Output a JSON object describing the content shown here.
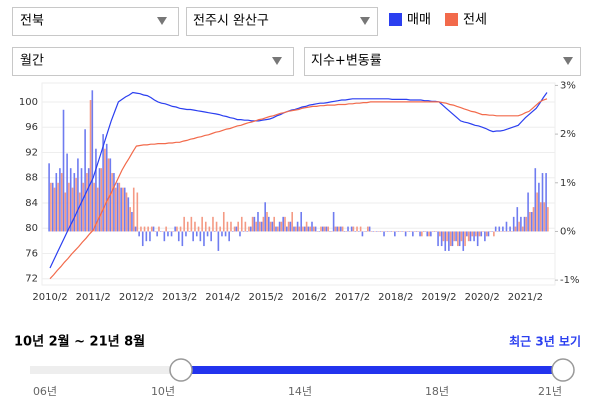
{
  "filters": {
    "region": "전북",
    "district": "전주시 완산구",
    "period": "월간",
    "view": "지수+변동률"
  },
  "range": {
    "label": "10년 2월 ~ 21년 8월",
    "recent": "최근 3년 보기",
    "scale": [
      "06년",
      "10년",
      "14년",
      "18년",
      "21년"
    ]
  },
  "chart_data": {
    "type": "line",
    "categories": [
      "2010/2",
      null,
      null,
      null,
      null,
      null,
      null,
      null,
      null,
      null,
      null,
      null,
      "2011/2",
      null,
      null,
      null,
      null,
      null,
      null,
      null,
      null,
      null,
      null,
      null,
      "2012/2",
      null,
      null,
      null,
      null,
      null,
      null,
      null,
      null,
      null,
      null,
      null,
      "2013/2",
      null,
      null,
      null,
      null,
      null,
      null,
      null,
      null,
      null,
      null,
      null,
      "2014/2",
      null,
      null,
      null,
      null,
      null,
      null,
      null,
      null,
      null,
      null,
      null,
      "2015/2",
      null,
      null,
      null,
      null,
      null,
      null,
      null,
      null,
      null,
      null,
      null,
      "2016/2",
      null,
      null,
      null,
      null,
      null,
      null,
      null,
      null,
      null,
      null,
      null,
      "2017/2",
      null,
      null,
      null,
      null,
      null,
      null,
      null,
      null,
      null,
      null,
      null,
      "2018/2",
      null,
      null,
      null,
      null,
      null,
      null,
      null,
      null,
      null,
      null,
      null,
      "2019/2",
      null,
      null,
      null,
      null,
      null,
      null,
      null,
      null,
      null,
      null,
      null,
      "2020/2",
      null,
      null,
      null,
      null,
      null,
      null,
      null,
      null,
      null,
      null,
      null,
      "2021/2",
      null,
      null,
      null,
      null,
      null,
      null
    ],
    "ylim": [
      71,
      103
    ],
    "yticks": [
      72,
      76,
      80,
      84,
      88,
      92,
      96,
      100
    ],
    "y2lim": [
      -1.1,
      3.05
    ],
    "y2ticks": [
      {
        "value": -1,
        "label": "-1%"
      },
      {
        "value": 0,
        "label": "0%"
      },
      {
        "value": 1,
        "label": "1%"
      },
      {
        "value": 2,
        "label": "2%"
      },
      {
        "value": 3,
        "label": "3%"
      }
    ],
    "series": [
      {
        "name": "매매",
        "color": "#2b3ff0",
        "values": [
          73.7,
          74.9,
          76.1,
          77.3,
          78.5,
          79.7,
          80.8,
          82.0,
          83.2,
          84.4,
          85.6,
          86.8,
          88.0,
          89.8,
          91.6,
          93.4,
          95.2,
          97.0,
          98.5,
          100.0,
          100.4,
          100.8,
          101.1,
          101.5,
          101.4,
          101.3,
          101.1,
          101.0,
          100.7,
          100.3,
          100.0,
          99.8,
          99.7,
          99.5,
          99.3,
          99.2,
          99.0,
          98.9,
          98.8,
          98.8,
          98.7,
          98.6,
          98.5,
          98.4,
          98.3,
          98.2,
          98.1,
          98.0,
          97.8,
          97.7,
          97.5,
          97.4,
          97.2,
          97.2,
          97.1,
          97.1,
          97.0,
          97.0,
          97.0,
          97.1,
          97.2,
          97.3,
          97.5,
          97.8,
          98.0,
          98.3,
          98.5,
          98.7,
          98.8,
          99.0,
          99.2,
          99.3,
          99.5,
          99.6,
          99.7,
          99.8,
          99.8,
          99.9,
          100.0,
          100.1,
          100.2,
          100.3,
          100.3,
          100.4,
          100.5,
          100.5,
          100.5,
          100.5,
          100.5,
          100.5,
          100.5,
          100.5,
          100.5,
          100.5,
          100.5,
          100.4,
          100.4,
          100.4,
          100.4,
          100.4,
          100.3,
          100.3,
          100.3,
          100.3,
          100.2,
          100.2,
          100.1,
          100.1,
          100.0,
          99.5,
          99.0,
          98.5,
          98.0,
          97.5,
          97.0,
          96.8,
          96.7,
          96.5,
          96.3,
          96.2,
          96.0,
          95.8,
          95.5,
          95.3,
          95.4,
          95.4,
          95.5,
          95.7,
          95.9,
          96.1,
          96.3,
          96.9,
          97.5,
          98.0,
          98.5,
          99.0,
          99.8,
          100.7,
          101.5
        ]
      },
      {
        "name": "전세",
        "color": "#f26a4b",
        "values": [
          72.0,
          72.6,
          73.3,
          73.9,
          74.6,
          75.2,
          75.9,
          76.5,
          77.1,
          77.8,
          78.4,
          79.1,
          79.7,
          80.9,
          82.1,
          83.3,
          84.5,
          85.6,
          86.8,
          88.0,
          89.2,
          90.2,
          91.1,
          92.1,
          93.0,
          93.1,
          93.2,
          93.2,
          93.3,
          93.3,
          93.4,
          93.4,
          93.4,
          93.5,
          93.5,
          93.6,
          93.6,
          93.8,
          93.9,
          94.1,
          94.2,
          94.4,
          94.5,
          94.7,
          94.8,
          95.0,
          95.2,
          95.3,
          95.5,
          95.7,
          95.8,
          96.0,
          96.2,
          96.3,
          96.5,
          96.7,
          96.8,
          97.0,
          97.2,
          97.3,
          97.5,
          97.7,
          97.8,
          98.0,
          98.2,
          98.3,
          98.5,
          98.6,
          98.7,
          98.8,
          99.0,
          99.1,
          99.2,
          99.3,
          99.3,
          99.4,
          99.4,
          99.5,
          99.5,
          99.5,
          99.6,
          99.6,
          99.6,
          99.7,
          99.7,
          99.8,
          99.8,
          99.9,
          99.9,
          100.0,
          100.0,
          100.0,
          100.0,
          100.0,
          100.0,
          100.0,
          100.0,
          100.0,
          100.0,
          100.0,
          100.0,
          100.0,
          100.0,
          100.0,
          100.0,
          100.0,
          100.0,
          100.0,
          100.0,
          99.9,
          99.8,
          99.6,
          99.5,
          99.3,
          99.1,
          98.9,
          98.7,
          98.5,
          98.4,
          98.2,
          98.0,
          98.0,
          97.9,
          97.9,
          97.8,
          97.8,
          97.8,
          97.8,
          97.8,
          97.8,
          97.8,
          98.0,
          98.3,
          98.5,
          99.0,
          99.5,
          100.0,
          100.3,
          100.5
        ]
      },
      {
        "type": "bar",
        "axis": "y2",
        "color": "#6f7cf0",
        "values": [
          1.4,
          1.0,
          1.2,
          1.3,
          2.5,
          1.6,
          1.3,
          1.2,
          1.5,
          1.3,
          2.1,
          1.3,
          2.9,
          1.7,
          1.3,
          2.0,
          1.8,
          1.5,
          1.2,
          1.0,
          0.9,
          0.9,
          0.7,
          0.4,
          0.1,
          -0.1,
          -0.3,
          -0.2,
          -0.2,
          0.1,
          -0.1,
          0.0,
          -0.2,
          -0.1,
          -0.1,
          0.1,
          -0.2,
          -0.3,
          -0.1,
          0.0,
          -0.2,
          -0.1,
          -0.2,
          -0.3,
          -0.1,
          -0.2,
          0.0,
          -0.4,
          -0.1,
          -0.1,
          -0.2,
          0.0,
          0.1,
          -0.1,
          0.0,
          0.0,
          0.1,
          0.3,
          0.4,
          0.2,
          0.6,
          0.3,
          0.2,
          0.1,
          0.2,
          0.3,
          0.1,
          0.2,
          0.1,
          0.2,
          0.4,
          0.1,
          0.1,
          0.2,
          0.1,
          0.0,
          0.1,
          0.1,
          0.0,
          0.4,
          0.1,
          0.1,
          0.0,
          0.1,
          0.1,
          0.0,
          0.0,
          -0.1,
          0.0,
          0.1,
          0.0,
          0.0,
          0.0,
          -0.1,
          0.0,
          0.0,
          -0.1,
          0.0,
          0.0,
          -0.1,
          0.0,
          -0.1,
          0.0,
          -0.1,
          0.0,
          -0.1,
          -0.1,
          0.0,
          -0.3,
          -0.3,
          -0.4,
          -0.4,
          -0.3,
          -0.2,
          -0.3,
          -0.4,
          -0.1,
          -0.2,
          -0.2,
          -0.3,
          -0.1,
          -0.2,
          -0.1,
          0.0,
          0.1,
          0.1,
          0.1,
          0.2,
          0.1,
          0.3,
          0.5,
          0.3,
          0.3,
          0.8,
          0.4,
          1.3,
          1.0,
          1.2,
          1.2
        ]
      },
      {
        "type": "bar",
        "axis": "y2",
        "color": "#f49a84",
        "values": [
          1.0,
          0.9,
          1.0,
          1.2,
          0.8,
          1.0,
          0.9,
          1.1,
          0.8,
          1.0,
          1.2,
          2.7,
          1.0,
          0.9,
          1.3,
          1.7,
          1.5,
          1.2,
          0.9,
          1.0,
          0.9,
          0.8,
          0.5,
          0.9,
          0.8,
          0.1,
          0.1,
          0.1,
          0.1,
          0.0,
          0.1,
          0.0,
          0.1,
          0.0,
          0.0,
          0.1,
          0.1,
          0.3,
          0.2,
          0.3,
          0.2,
          0.1,
          0.3,
          0.2,
          0.1,
          0.3,
          0.2,
          0.1,
          0.4,
          0.2,
          0.2,
          0.1,
          0.2,
          0.3,
          0.2,
          0.1,
          0.3,
          0.2,
          0.2,
          0.3,
          0.4,
          0.2,
          0.3,
          0.1,
          0.2,
          0.3,
          0.2,
          0.4,
          0.1,
          0.1,
          0.1,
          0.2,
          0.1,
          0.1,
          0.0,
          0.1,
          0.1,
          0.1,
          0.0,
          0.1,
          0.1,
          0.1,
          0.0,
          0.0,
          0.1,
          0.1,
          0.1,
          0.0,
          0.1,
          0.0,
          0.0,
          0.0,
          0.0,
          0.0,
          0.0,
          0.0,
          0.0,
          0.0,
          0.0,
          0.0,
          0.0,
          0.0,
          0.0,
          -0.1,
          0.0,
          -0.1,
          0.0,
          0.0,
          -0.1,
          -0.2,
          -0.2,
          -0.3,
          -0.2,
          -0.3,
          -0.2,
          -0.3,
          -0.2,
          -0.1,
          -0.1,
          -0.1,
          0.0,
          -0.1,
          0.0,
          -0.1,
          0.0,
          0.0,
          0.0,
          0.0,
          0.0,
          0.1,
          0.2,
          0.1,
          0.3,
          0.4,
          0.5,
          0.8,
          0.6,
          0.6,
          0.5
        ]
      }
    ]
  }
}
